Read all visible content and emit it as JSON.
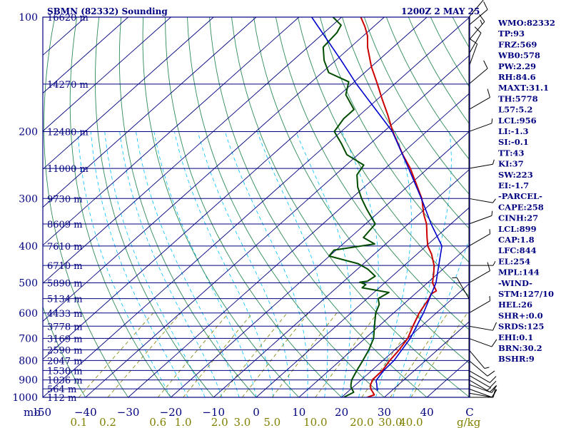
{
  "header": {
    "station": "SBMN (82332) Sounding",
    "time": "1200Z  2 MAY 25"
  },
  "colors": {
    "frame": "#000080",
    "isotherm": "#000080",
    "dry_adiabat": "#2e8b57",
    "moist_adiabat": "#00bfff",
    "mixing_ratio": "#808000",
    "temperature": "#cc0000",
    "dewpoint": "#004d00",
    "parcel": "#0000cc",
    "wind_barb": "#000000"
  },
  "chart_data": {
    "type": "line",
    "title": "SBMN (82332) Sounding",
    "subtitle": "1200Z  2 MAY 25",
    "xlabel": "",
    "ylabel": "mb",
    "x_unit": "°C",
    "y_scale": "log",
    "xlim": [
      -50,
      50
    ],
    "ylim": [
      1000,
      100
    ],
    "grid": true,
    "pressure_ticks": [
      100,
      200,
      300,
      400,
      500,
      600,
      700,
      800,
      900,
      1000
    ],
    "pressure_tick_labels": [
      "100",
      "200",
      "300",
      "400",
      "500",
      "600",
      "700",
      "800",
      "900",
      "1000"
    ],
    "y_axis_unit_label": "mb",
    "temperature_ticks": [
      -50,
      -40,
      -30,
      -20,
      -10,
      0,
      10,
      20,
      30,
      40,
      50
    ],
    "temperature_tick_labels": [
      "-50",
      "−40",
      "−30",
      "−20",
      "−10",
      "0",
      "10",
      "20",
      "30",
      "40",
      "C"
    ],
    "mixing_ratio_ticks": [
      0.1,
      0.2,
      0.6,
      1.0,
      2.0,
      3.0,
      5.0,
      10.0,
      20.0,
      30.0,
      40.0
    ],
    "mixing_ratio_tick_labels": [
      "0.1",
      "0.2",
      "0.6",
      "1.0",
      "2.0",
      "3.0",
      "5.0",
      "10.0",
      "20.0",
      "30.0",
      "40.0"
    ],
    "mixing_ratio_unit_label": "g/kg",
    "height_labels": [
      {
        "p": 100,
        "label": "16620 m"
      },
      {
        "p": 150,
        "label": "14270 m"
      },
      {
        "p": 200,
        "label": "12480 m"
      },
      {
        "p": 250,
        "label": "11000 m"
      },
      {
        "p": 300,
        "label": "9730 m"
      },
      {
        "p": 350,
        "label": "8609 m"
      },
      {
        "p": 400,
        "label": "7610 m"
      },
      {
        "p": 450,
        "label": "6710 m"
      },
      {
        "p": 500,
        "label": "5890 m"
      },
      {
        "p": 550,
        "label": "5134 m"
      },
      {
        "p": 600,
        "label": "4433 m"
      },
      {
        "p": 650,
        "label": "3778 m"
      },
      {
        "p": 700,
        "label": "3169 m"
      },
      {
        "p": 750,
        "label": "2590 m"
      },
      {
        "p": 800,
        "label": "2047 m"
      },
      {
        "p": 850,
        "label": "1530 m"
      },
      {
        "p": 900,
        "label": "1036 m"
      },
      {
        "p": 950,
        "label": "564 m"
      },
      {
        "p": 1000,
        "label": "112 m"
      }
    ],
    "series": [
      {
        "key": "temperature",
        "points": [
          [
            1000,
            26.0
          ],
          [
            985,
            27.0
          ],
          [
            970,
            26.0
          ],
          [
            950,
            24.6
          ],
          [
            925,
            23.4
          ],
          [
            910,
            23.0
          ],
          [
            900,
            22.6
          ],
          [
            850,
            22.5
          ],
          [
            800,
            21.6
          ],
          [
            750,
            21.0
          ],
          [
            700,
            20.0
          ],
          [
            650,
            18.0
          ],
          [
            600,
            16.0
          ],
          [
            550,
            14.5
          ],
          [
            535,
            13.8
          ],
          [
            525,
            14.2
          ],
          [
            500,
            11.2
          ],
          [
            470,
            8.8
          ],
          [
            450,
            7.0
          ],
          [
            420,
            3.4
          ],
          [
            400,
            0.4
          ],
          [
            380,
            -2.0
          ],
          [
            350,
            -5.7
          ],
          [
            330,
            -8.9
          ],
          [
            300,
            -13.5
          ],
          [
            280,
            -17.5
          ],
          [
            250,
            -24.1
          ],
          [
            230,
            -29.5
          ],
          [
            200,
            -37.9
          ],
          [
            180,
            -43.7
          ],
          [
            165,
            -48.7
          ],
          [
            150,
            -54.0
          ],
          [
            135,
            -60.0
          ],
          [
            120,
            -66.0
          ],
          [
            112,
            -69.0
          ],
          [
            106,
            -72.0
          ],
          [
            100,
            -75.5
          ]
        ]
      },
      {
        "key": "dewpoint",
        "points": [
          [
            1000,
            20.5
          ],
          [
            970,
            21.5
          ],
          [
            940,
            19.5
          ],
          [
            925,
            18.8
          ],
          [
            900,
            17.8
          ],
          [
            850,
            16.5
          ],
          [
            800,
            15.3
          ],
          [
            750,
            13.9
          ],
          [
            700,
            12.0
          ],
          [
            650,
            9.0
          ],
          [
            600,
            5.8
          ],
          [
            570,
            4.4
          ],
          [
            550,
            2.6
          ],
          [
            530,
            3.5
          ],
          [
            515,
            -4.0
          ],
          [
            505,
            -4.0
          ],
          [
            498,
            -6.0
          ],
          [
            495,
            -4.5
          ],
          [
            480,
            -4.0
          ],
          [
            460,
            -7.6
          ],
          [
            445,
            -11.3
          ],
          [
            425,
            -20.1
          ],
          [
            410,
            -20.5
          ],
          [
            395,
            -12.6
          ],
          [
            380,
            -16.9
          ],
          [
            350,
            -17.7
          ],
          [
            320,
            -23.6
          ],
          [
            300,
            -27.6
          ],
          [
            280,
            -31.5
          ],
          [
            260,
            -34.9
          ],
          [
            245,
            -35.9
          ],
          [
            230,
            -42.6
          ],
          [
            215,
            -46.8
          ],
          [
            200,
            -51.6
          ],
          [
            185,
            -52.8
          ],
          [
            175,
            -52.8
          ],
          [
            160,
            -58.6
          ],
          [
            148,
            -61.3
          ],
          [
            140,
            -68.4
          ],
          [
            130,
            -72.7
          ],
          [
            120,
            -76.4
          ],
          [
            110,
            -77.0
          ],
          [
            105,
            -78.0
          ],
          [
            100,
            -82.0
          ]
        ]
      },
      {
        "key": "parcel",
        "points": [
          [
            960,
            26.6
          ],
          [
            940,
            25.6
          ],
          [
            920,
            24.6
          ],
          [
            910,
            24.0
          ],
          [
            900,
            23.6
          ],
          [
            850,
            22.8
          ],
          [
            800,
            22.6
          ],
          [
            700,
            20.6
          ],
          [
            600,
            17.0
          ],
          [
            500,
            12.0
          ],
          [
            400,
            3.7
          ],
          [
            350,
            -4.6
          ],
          [
            300,
            -13.6
          ],
          [
            250,
            -24.5
          ],
          [
            200,
            -38.0
          ],
          [
            150,
            -58.9
          ],
          [
            130,
            -68.7
          ],
          [
            100,
            -87.0
          ]
        ]
      }
    ],
    "wind_barbs": [
      {
        "p": 1000,
        "dir": 90,
        "kt": 10
      },
      {
        "p": 975,
        "dir": 100,
        "kt": 10
      },
      {
        "p": 950,
        "dir": 110,
        "kt": 10
      },
      {
        "p": 925,
        "dir": 110,
        "kt": 10
      },
      {
        "p": 900,
        "dir": 120,
        "kt": 15
      },
      {
        "p": 875,
        "dir": 120,
        "kt": 10
      },
      {
        "p": 850,
        "dir": 120,
        "kt": 10
      },
      {
        "p": 800,
        "dir": 130,
        "kt": 10
      },
      {
        "p": 750,
        "dir": 140,
        "kt": 5
      },
      {
        "p": 700,
        "dir": 110,
        "kt": 10
      },
      {
        "p": 650,
        "dir": 100,
        "kt": 10
      },
      {
        "p": 600,
        "dir": 60,
        "kt": 5
      },
      {
        "p": 550,
        "dir": 330,
        "kt": 5
      },
      {
        "p": 500,
        "dir": 60,
        "kt": 10
      },
      {
        "p": 450,
        "dir": 90,
        "kt": 5
      },
      {
        "p": 400,
        "dir": 60,
        "kt": 5
      },
      {
        "p": 350,
        "dir": 70,
        "kt": 5
      },
      {
        "p": 300,
        "dir": 100,
        "kt": 5
      },
      {
        "p": 250,
        "dir": 80,
        "kt": 5
      },
      {
        "p": 200,
        "dir": 70,
        "kt": 5
      },
      {
        "p": 175,
        "dir": 60,
        "kt": 10
      },
      {
        "p": 150,
        "dir": 50,
        "kt": 10
      },
      {
        "p": 135,
        "dir": 20,
        "kt": 10
      },
      {
        "p": 125,
        "dir": 30,
        "kt": 10
      },
      {
        "p": 115,
        "dir": 40,
        "kt": 15
      },
      {
        "p": 105,
        "dir": 50,
        "kt": 10
      },
      {
        "p": 100,
        "dir": 40,
        "kt": 5
      }
    ],
    "indices": [
      "WMO:82332",
      "TP:93",
      "FRZ:569",
      "WB0:578",
      "PW:2.29",
      "RH:84.6",
      "MAXT:31.1",
      "TH:5778",
      "L57:5.2",
      "LCL:956",
      "LI:-1.3",
      "SI:-0.1",
      "TT:43",
      "KI:37",
      "SW:223",
      "EI:-1.7",
      "-PARCEL-",
      "CAPE:258",
      "CINH:27",
      "LCL:899",
      "CAP:1.8",
      "LFC:844",
      "EL:254",
      "MPL:144",
      "-WIND-",
      "STM:127/10",
      "HEL:26",
      "SHR+:0.0",
      "SRDS:125",
      "EHI:0.1",
      "BRN:30.2",
      "BSHR:9"
    ]
  }
}
